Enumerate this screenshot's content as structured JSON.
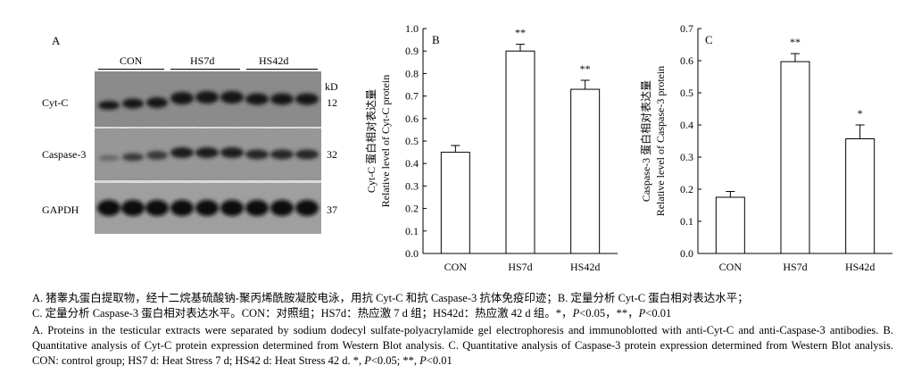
{
  "panel_a": {
    "letter": "A",
    "groups": [
      "CON",
      "HS7d",
      "HS42d"
    ],
    "rows": [
      {
        "label": "Cyt-C",
        "kd": "12"
      },
      {
        "label": "Caspase-3",
        "kd": "32"
      },
      {
        "label": "GAPDH",
        "kd": "37"
      }
    ],
    "kd_unit": "kD"
  },
  "chart_data": [
    {
      "type": "bar",
      "panel": "B",
      "categories": [
        "CON",
        "HS7d",
        "HS42d"
      ],
      "values": [
        0.45,
        0.9,
        0.73
      ],
      "errors": [
        0.03,
        0.03,
        0.04
      ],
      "significance": [
        "",
        "**",
        "**"
      ],
      "ylabel_cn": "Cyt-C 蛋白相对表达量",
      "ylabel_en": "Relative level of Cyt-C protein",
      "ylim": [
        0,
        1.0
      ],
      "yticks": [
        "0.0",
        "0.1",
        "0.2",
        "0.3",
        "0.4",
        "0.5",
        "0.6",
        "0.7",
        "0.8",
        "0.9",
        "1.0"
      ],
      "grid": false
    },
    {
      "type": "bar",
      "panel": "C",
      "categories": [
        "CON",
        "HS7d",
        "HS42d"
      ],
      "values": [
        0.175,
        0.597,
        0.357
      ],
      "errors": [
        0.018,
        0.025,
        0.043
      ],
      "significance": [
        "",
        "**",
        "*"
      ],
      "ylabel_cn": "Caspase-3 蛋白相对表达量",
      "ylabel_en": "Relative level of Caspase-3 protein",
      "ylim": [
        0,
        0.7
      ],
      "yticks": [
        "0.0",
        "0.1",
        "0.2",
        "0.3",
        "0.4",
        "0.5",
        "0.6",
        "0.7"
      ],
      "grid": false
    }
  ],
  "caption": {
    "cn_1_pre": "A. 猪睾丸蛋白提取物，经十二烷基硫酸钠-聚丙烯酰胺凝胶电泳，用抗 Cyt-C 和抗 Caspase-3 抗体免疫印迹；B. 定量分析 Cyt-C 蛋白相对表达水平；",
    "cn_2_pre": "C. 定量分析 Caspase-3 蛋白相对表达水平。CON：对照组；HS7d：热应激 7 d 组；HS42d：热应激 42 d 组。*，",
    "p1": "P",
    "cn_2_mid": "<0.05，**，",
    "p2": "P",
    "cn_2_end": "<0.01",
    "en_main": "A. Proteins in the testicular extracts were separated by sodium dodecyl sulfate-polyacrylamide gel electrophoresis and immunoblotted with anti-Cyt-C and anti-Caspase-3 antibodies. B. Quantitative analysis of Cyt-C protein expression determined from Western Blot analysis. C. Quantitative analysis of Caspase-3 protein expression determined from Western Blot analysis. CON: control group; HS7 d: Heat Stress 7 d; HS42 d: Heat Stress 42 d. *, ",
    "en_p1": "P",
    "en_mid": "<0.05; **, ",
    "en_p2": "P",
    "en_end": "<0.01"
  }
}
